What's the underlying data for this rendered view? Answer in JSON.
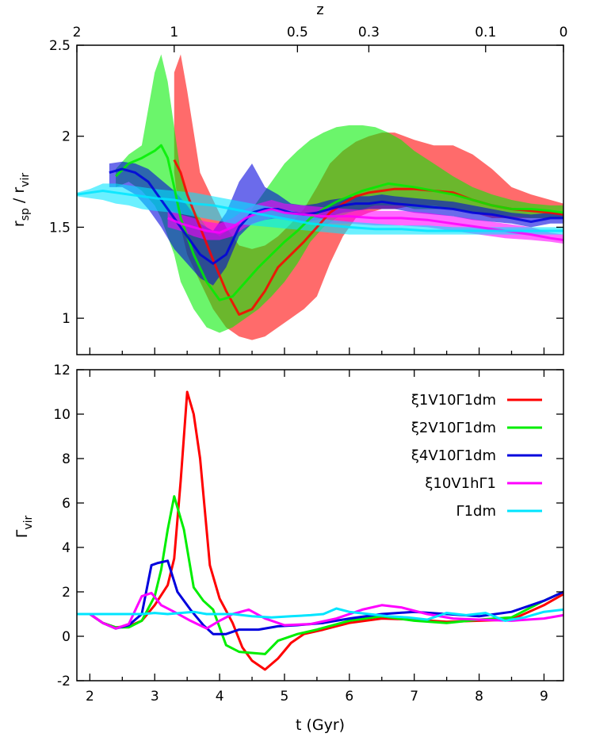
{
  "chart_data": [
    {
      "type": "area",
      "panel": "top",
      "ylabel_main": "r",
      "ylabel_sub1": "sp",
      "ylabel_mid": " / r",
      "ylabel_sub2": "vir",
      "top_axis_label": "z",
      "top_ticks": [
        {
          "label": "2",
          "t": 1.8
        },
        {
          "label": "1",
          "t": 3.3
        },
        {
          "label": "0.5",
          "t": 5.2
        },
        {
          "label": "0.3",
          "t": 6.3
        },
        {
          "label": "0.1",
          "t": 8.1
        },
        {
          "label": "0",
          "t": 9.3
        }
      ],
      "xlim": [
        1.8,
        9.3
      ],
      "ylim": [
        0.8,
        2.5
      ],
      "yticks": [
        "1",
        "1.5",
        "2",
        "2.5"
      ],
      "series": [
        {
          "color": "#ff0000",
          "x": [
            3.3,
            3.4,
            3.5,
            3.7,
            3.9,
            4.1,
            4.3,
            4.5,
            4.7,
            4.9,
            5.1,
            5.3,
            5.5,
            5.7,
            5.9,
            6.1,
            6.3,
            6.5,
            6.7,
            7.0,
            7.3,
            7.6,
            7.9,
            8.2,
            8.5,
            8.8,
            9.1,
            9.3
          ],
          "y": [
            1.87,
            1.8,
            1.68,
            1.5,
            1.32,
            1.15,
            1.02,
            1.05,
            1.15,
            1.28,
            1.35,
            1.42,
            1.5,
            1.58,
            1.63,
            1.67,
            1.69,
            1.7,
            1.71,
            1.71,
            1.7,
            1.69,
            1.65,
            1.62,
            1.6,
            1.59,
            1.58,
            1.57
          ],
          "lower": [
            1.8,
            1.5,
            1.35,
            1.2,
            1.05,
            0.95,
            0.9,
            0.88,
            0.9,
            0.95,
            1.0,
            1.05,
            1.12,
            1.3,
            1.45,
            1.55,
            1.58,
            1.6,
            1.6,
            1.62,
            1.62,
            1.6,
            1.58,
            1.55,
            1.55,
            1.55,
            1.55,
            1.55
          ],
          "upper": [
            2.35,
            2.45,
            2.25,
            1.8,
            1.65,
            1.5,
            1.4,
            1.38,
            1.4,
            1.45,
            1.52,
            1.6,
            1.72,
            1.85,
            1.92,
            1.97,
            2.0,
            2.02,
            2.02,
            1.98,
            1.95,
            1.95,
            1.9,
            1.82,
            1.72,
            1.68,
            1.65,
            1.63
          ]
        },
        {
          "color": "#00ee00",
          "x": [
            2.4,
            2.6,
            2.8,
            3.0,
            3.1,
            3.2,
            3.3,
            3.4,
            3.6,
            3.8,
            4.0,
            4.2,
            4.4,
            4.6,
            4.8,
            5.0,
            5.2,
            5.4,
            5.6,
            5.8,
            6.0,
            6.2,
            6.4,
            6.6,
            6.8,
            7.0,
            7.3,
            7.6,
            7.9,
            8.2,
            8.5,
            8.8,
            9.1,
            9.3
          ],
          "y": [
            1.78,
            1.85,
            1.88,
            1.92,
            1.95,
            1.88,
            1.72,
            1.55,
            1.35,
            1.2,
            1.1,
            1.12,
            1.2,
            1.28,
            1.35,
            1.42,
            1.48,
            1.55,
            1.6,
            1.64,
            1.67,
            1.7,
            1.72,
            1.74,
            1.73,
            1.72,
            1.7,
            1.68,
            1.65,
            1.62,
            1.6,
            1.6,
            1.59,
            1.58
          ],
          "lower": [
            1.72,
            1.75,
            1.7,
            1.62,
            1.55,
            1.45,
            1.35,
            1.2,
            1.05,
            0.95,
            0.92,
            0.95,
            1.0,
            1.05,
            1.12,
            1.2,
            1.3,
            1.42,
            1.5,
            1.55,
            1.58,
            1.6,
            1.62,
            1.62,
            1.62,
            1.6,
            1.6,
            1.6,
            1.58,
            1.57,
            1.56,
            1.55,
            1.55,
            1.55
          ],
          "upper": [
            1.82,
            1.9,
            1.95,
            2.35,
            2.45,
            2.3,
            2.05,
            1.8,
            1.6,
            1.5,
            1.45,
            1.5,
            1.55,
            1.65,
            1.75,
            1.85,
            1.92,
            1.98,
            2.02,
            2.05,
            2.06,
            2.06,
            2.05,
            2.02,
            1.98,
            1.92,
            1.85,
            1.78,
            1.72,
            1.68,
            1.65,
            1.63,
            1.62,
            1.62
          ]
        },
        {
          "color": "#0000dd",
          "x": [
            2.3,
            2.5,
            2.7,
            2.9,
            3.1,
            3.3,
            3.5,
            3.7,
            3.9,
            4.1,
            4.3,
            4.5,
            4.7,
            4.9,
            5.1,
            5.3,
            5.5,
            5.7,
            5.9,
            6.1,
            6.3,
            6.5,
            6.7,
            7.0,
            7.3,
            7.6,
            7.9,
            8.2,
            8.5,
            8.8,
            9.1,
            9.3
          ],
          "y": [
            1.8,
            1.82,
            1.8,
            1.75,
            1.65,
            1.55,
            1.45,
            1.35,
            1.3,
            1.35,
            1.5,
            1.58,
            1.6,
            1.6,
            1.58,
            1.57,
            1.58,
            1.6,
            1.62,
            1.63,
            1.63,
            1.64,
            1.63,
            1.62,
            1.61,
            1.6,
            1.58,
            1.57,
            1.55,
            1.53,
            1.55,
            1.55
          ],
          "lower": [
            1.72,
            1.72,
            1.68,
            1.6,
            1.5,
            1.38,
            1.3,
            1.22,
            1.18,
            1.28,
            1.45,
            1.52,
            1.54,
            1.55,
            1.54,
            1.53,
            1.54,
            1.56,
            1.58,
            1.59,
            1.6,
            1.6,
            1.6,
            1.58,
            1.57,
            1.56,
            1.54,
            1.53,
            1.52,
            1.5,
            1.52,
            1.52
          ],
          "upper": [
            1.85,
            1.86,
            1.85,
            1.82,
            1.76,
            1.7,
            1.62,
            1.52,
            1.48,
            1.58,
            1.75,
            1.85,
            1.72,
            1.68,
            1.63,
            1.62,
            1.63,
            1.65,
            1.66,
            1.67,
            1.67,
            1.68,
            1.67,
            1.66,
            1.65,
            1.64,
            1.62,
            1.6,
            1.58,
            1.57,
            1.58,
            1.58
          ]
        },
        {
          "color": "#ff00ff",
          "x": [
            3.2,
            3.4,
            3.6,
            3.8,
            4.0,
            4.2,
            4.4,
            4.6,
            4.8,
            5.0,
            5.3,
            5.6,
            6.0,
            6.4,
            6.8,
            7.2,
            7.6,
            8.0,
            8.4,
            8.8,
            9.1,
            9.3
          ],
          "y": [
            1.55,
            1.52,
            1.5,
            1.48,
            1.47,
            1.5,
            1.55,
            1.58,
            1.6,
            1.58,
            1.57,
            1.56,
            1.56,
            1.55,
            1.55,
            1.54,
            1.52,
            1.5,
            1.48,
            1.46,
            1.44,
            1.43
          ],
          "lower": [
            1.5,
            1.48,
            1.45,
            1.43,
            1.43,
            1.45,
            1.5,
            1.53,
            1.55,
            1.54,
            1.53,
            1.52,
            1.52,
            1.51,
            1.51,
            1.5,
            1.48,
            1.46,
            1.44,
            1.43,
            1.42,
            1.41
          ],
          "upper": [
            1.6,
            1.57,
            1.55,
            1.53,
            1.52,
            1.55,
            1.6,
            1.63,
            1.65,
            1.63,
            1.62,
            1.61,
            1.6,
            1.59,
            1.59,
            1.58,
            1.56,
            1.54,
            1.52,
            1.5,
            1.47,
            1.46
          ]
        },
        {
          "color": "#00e5ff",
          "x": [
            1.8,
            2.0,
            2.2,
            2.4,
            2.6,
            2.8,
            3.0,
            3.3,
            3.6,
            3.9,
            4.2,
            4.5,
            4.8,
            5.1,
            5.4,
            5.7,
            6.0,
            6.4,
            6.8,
            7.2,
            7.6,
            8.0,
            8.4,
            8.8,
            9.1,
            9.3
          ],
          "y": [
            1.68,
            1.69,
            1.7,
            1.69,
            1.68,
            1.67,
            1.66,
            1.65,
            1.63,
            1.62,
            1.6,
            1.58,
            1.56,
            1.54,
            1.52,
            1.51,
            1.5,
            1.49,
            1.49,
            1.48,
            1.48,
            1.48,
            1.48,
            1.48,
            1.48,
            1.48
          ],
          "lower": [
            1.67,
            1.66,
            1.65,
            1.63,
            1.62,
            1.6,
            1.59,
            1.58,
            1.56,
            1.54,
            1.52,
            1.51,
            1.5,
            1.49,
            1.48,
            1.47,
            1.46,
            1.46,
            1.46,
            1.46,
            1.46,
            1.46,
            1.46,
            1.46,
            1.46,
            1.46
          ],
          "upper": [
            1.69,
            1.71,
            1.74,
            1.74,
            1.73,
            1.72,
            1.71,
            1.7,
            1.69,
            1.67,
            1.65,
            1.63,
            1.61,
            1.59,
            1.56,
            1.54,
            1.53,
            1.52,
            1.51,
            1.51,
            1.5,
            1.5,
            1.5,
            1.5,
            1.5,
            1.5
          ]
        }
      ]
    },
    {
      "type": "line",
      "panel": "bottom",
      "xlabel": "t (Gyr)",
      "ylabel": "Γ",
      "ylabel_sub": "vir",
      "xlim": [
        1.8,
        9.3
      ],
      "ylim": [
        -2,
        12
      ],
      "xticks": [
        "2",
        "3",
        "4",
        "5",
        "6",
        "7",
        "8",
        "9"
      ],
      "yticks": [
        "-2",
        "0",
        "2",
        "4",
        "6",
        "8",
        "10",
        "12"
      ],
      "legend_position": "top-right",
      "series": [
        {
          "name": "ξ1V10Γ1dm",
          "color": "#ff0000",
          "x": [
            1.8,
            2.0,
            2.2,
            2.4,
            2.6,
            2.8,
            3.0,
            3.2,
            3.3,
            3.4,
            3.5,
            3.6,
            3.7,
            3.85,
            4.0,
            4.2,
            4.35,
            4.5,
            4.7,
            4.9,
            5.1,
            5.3,
            5.6,
            6.0,
            6.5,
            7.0,
            7.5,
            8.0,
            8.5,
            9.0,
            9.3
          ],
          "y": [
            1.0,
            1.0,
            0.6,
            0.4,
            0.45,
            0.7,
            1.4,
            2.3,
            3.5,
            7.0,
            11.0,
            10.0,
            8.0,
            3.2,
            1.7,
            0.6,
            -0.5,
            -1.1,
            -1.5,
            -1.0,
            -0.3,
            0.1,
            0.3,
            0.6,
            0.8,
            0.75,
            0.65,
            0.7,
            0.75,
            1.4,
            1.9
          ]
        },
        {
          "name": "ξ2V10Γ1dm",
          "color": "#00ee00",
          "x": [
            1.8,
            2.0,
            2.2,
            2.4,
            2.6,
            2.8,
            3.0,
            3.1,
            3.2,
            3.3,
            3.45,
            3.6,
            3.75,
            3.9,
            4.1,
            4.3,
            4.5,
            4.7,
            4.9,
            5.2,
            5.5,
            6.0,
            6.5,
            7.0,
            7.5,
            8.0,
            8.5,
            9.0,
            9.3
          ],
          "y": [
            1.0,
            1.0,
            0.6,
            0.4,
            0.4,
            0.7,
            1.8,
            3.0,
            4.8,
            6.3,
            4.8,
            2.2,
            1.6,
            1.2,
            -0.4,
            -0.7,
            -0.75,
            -0.8,
            -0.2,
            0.1,
            0.3,
            0.7,
            0.9,
            0.7,
            0.6,
            0.75,
            0.85,
            1.6,
            2.0
          ]
        },
        {
          "name": "ξ4V10Γ1dm",
          "color": "#0000dd",
          "x": [
            1.8,
            2.0,
            2.2,
            2.4,
            2.6,
            2.8,
            2.95,
            3.05,
            3.2,
            3.35,
            3.55,
            3.75,
            3.9,
            4.1,
            4.3,
            4.6,
            4.9,
            5.2,
            5.6,
            6.0,
            6.5,
            7.0,
            7.5,
            8.0,
            8.5,
            9.0,
            9.3
          ],
          "y": [
            1.0,
            1.0,
            0.6,
            0.35,
            0.5,
            1.0,
            3.2,
            3.3,
            3.4,
            2.0,
            1.2,
            0.5,
            0.1,
            0.1,
            0.3,
            0.3,
            0.45,
            0.5,
            0.6,
            0.8,
            1.0,
            1.1,
            1.0,
            0.9,
            1.1,
            1.6,
            2.0
          ]
        },
        {
          "name": "ξ10V1hΓ1",
          "color": "#ff00ff",
          "x": [
            1.8,
            2.0,
            2.2,
            2.4,
            2.6,
            2.8,
            2.95,
            3.1,
            3.3,
            3.55,
            3.8,
            4.0,
            4.2,
            4.45,
            4.7,
            5.0,
            5.4,
            5.8,
            6.2,
            6.5,
            6.8,
            7.2,
            7.6,
            8.0,
            8.5,
            9.0,
            9.3
          ],
          "y": [
            1.0,
            1.0,
            0.6,
            0.35,
            0.55,
            1.8,
            1.95,
            1.4,
            1.1,
            0.7,
            0.35,
            0.7,
            1.0,
            1.2,
            0.8,
            0.5,
            0.55,
            0.8,
            1.2,
            1.4,
            1.3,
            1.0,
            0.8,
            0.75,
            0.7,
            0.8,
            0.95
          ]
        },
        {
          "name": "Γ1dm",
          "color": "#00e5ff",
          "x": [
            1.8,
            2.0,
            2.2,
            2.4,
            2.6,
            2.8,
            3.0,
            3.2,
            3.4,
            3.6,
            3.8,
            4.0,
            4.2,
            4.5,
            4.8,
            5.1,
            5.4,
            5.6,
            5.8,
            6.0,
            6.3,
            6.6,
            6.9,
            7.2,
            7.5,
            7.8,
            8.1,
            8.4,
            8.7,
            9.0,
            9.3
          ],
          "y": [
            1.0,
            1.0,
            1.0,
            1.0,
            1.0,
            1.0,
            1.05,
            1.0,
            1.05,
            1.1,
            1.0,
            1.0,
            1.0,
            0.9,
            0.85,
            0.9,
            0.95,
            1.0,
            1.25,
            1.1,
            1.0,
            0.9,
            0.85,
            0.75,
            1.05,
            0.95,
            1.05,
            0.7,
            0.85,
            1.1,
            1.2
          ]
        }
      ]
    }
  ]
}
